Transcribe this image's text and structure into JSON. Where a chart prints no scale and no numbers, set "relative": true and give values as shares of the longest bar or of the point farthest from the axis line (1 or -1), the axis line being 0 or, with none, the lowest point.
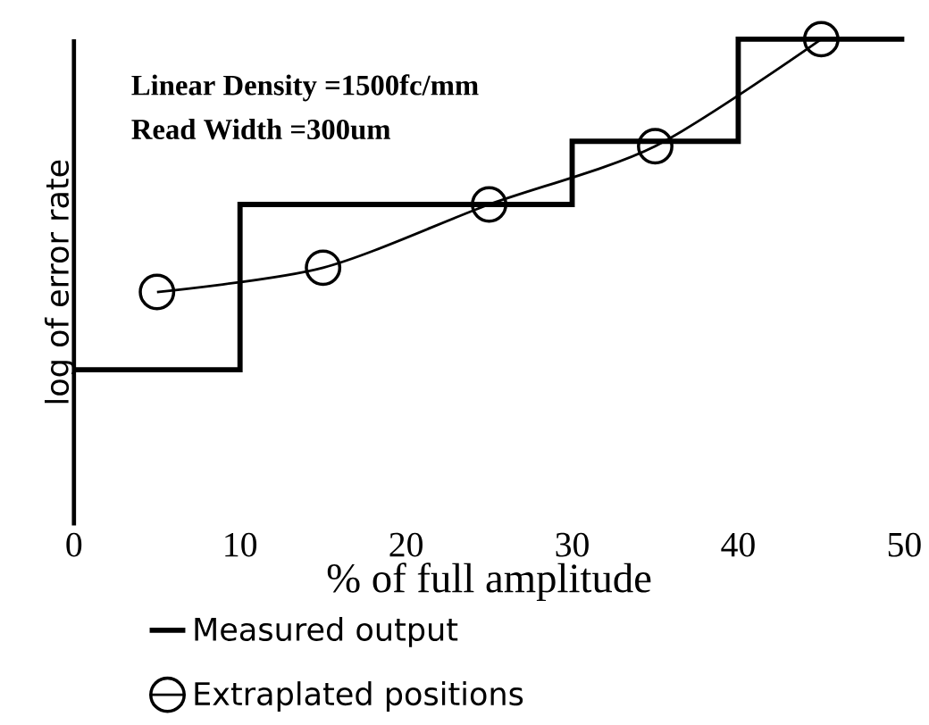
{
  "chart_data": {
    "type": "line",
    "relative": true,
    "xlabel": "% of full amplitude",
    "ylabel": "log of error rate",
    "xlim": [
      0,
      50
    ],
    "xticks": [
      0,
      10,
      20,
      30,
      40,
      50
    ],
    "annotations": [
      "Linear Density =1500fc/mm",
      "Read Width =300um"
    ],
    "legend": "bottom",
    "series": [
      {
        "name": "Measured output",
        "type": "step",
        "color": "#000000",
        "marker": "none",
        "x": [
          0,
          10,
          30,
          40,
          50
        ],
        "values": [
          0.32,
          0.66,
          0.79,
          1.0,
          1.0
        ]
      },
      {
        "name": "Extraplated positions",
        "color": "#000000",
        "marker": "circle",
        "x": [
          5,
          15,
          25,
          35,
          45
        ],
        "values": [
          0.48,
          0.53,
          0.66,
          0.78,
          1.0
        ]
      }
    ]
  }
}
